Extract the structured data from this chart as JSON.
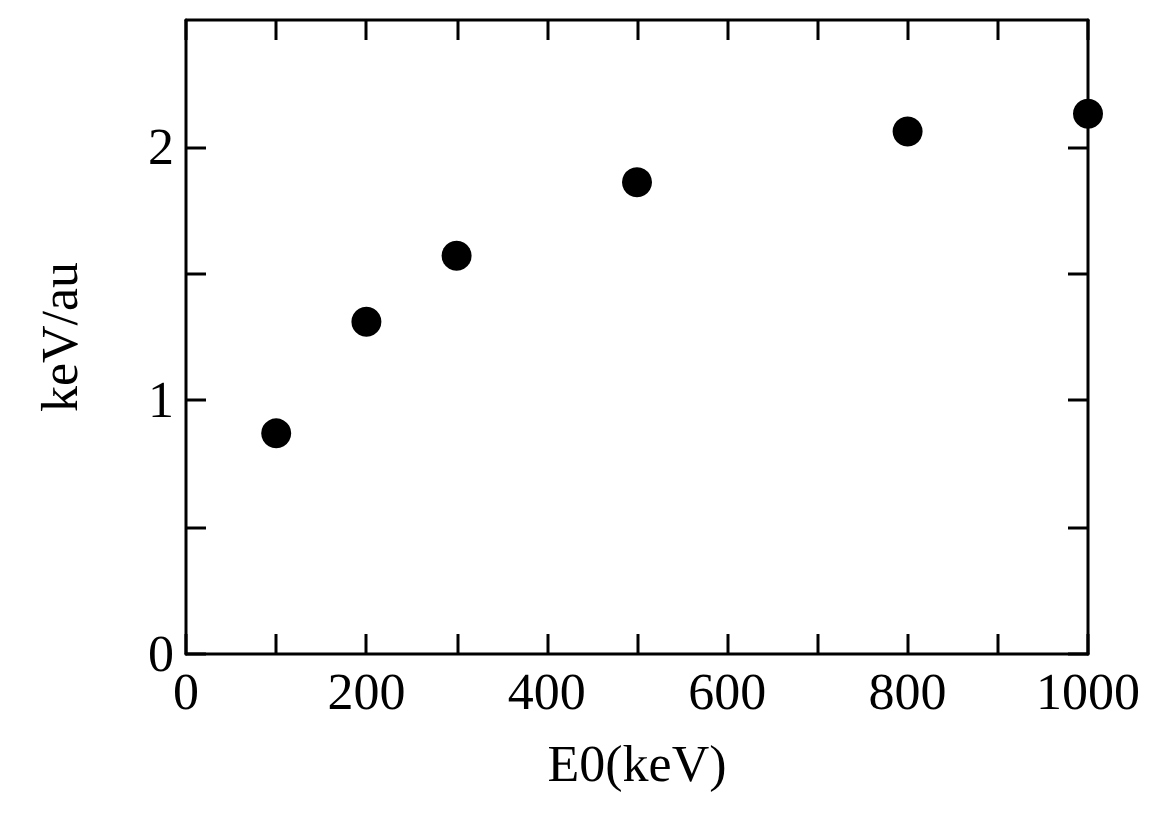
{
  "chart_data": {
    "type": "scatter",
    "xlabel": "E0(keV)",
    "ylabel": "keV/au",
    "x": [
      100,
      200,
      300,
      500,
      800,
      1000
    ],
    "series": [
      {
        "color": "#000000",
        "values": [
          0.87,
          1.31,
          1.57,
          1.86,
          2.06,
          2.13
        ]
      }
    ],
    "marker": "circle",
    "grid": false,
    "xlim": [
      0,
      1000
    ],
    "ylim": [
      0,
      2.5
    ],
    "xticks": [
      0,
      {
        "value": 100,
        "label": null
      },
      200,
      {
        "value": 300,
        "label": null
      },
      400,
      {
        "value": 500,
        "label": null
      },
      600,
      {
        "value": 700,
        "label": null
      },
      800,
      {
        "value": 900,
        "label": null
      },
      1000
    ],
    "yticks": [
      0,
      {
        "value": 0.5,
        "label": null
      },
      1,
      {
        "value": 1.5,
        "label": null
      },
      2
    ]
  }
}
